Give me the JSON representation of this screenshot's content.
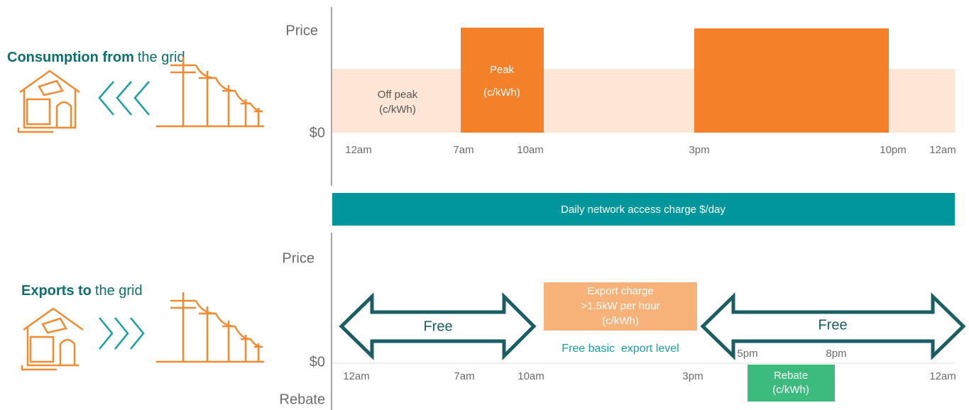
{
  "consumption": {
    "heading_bold": "Consumption from",
    "heading_rest": "the grid",
    "y_labels": [
      "Price",
      "$0"
    ],
    "time_labels": [
      "12am",
      "7am",
      "10am",
      "3pm",
      "10pm",
      "12am"
    ],
    "off_peak": [
      "Off peak",
      "(c/kWh)"
    ],
    "peak": [
      "Peak",
      "(c/kWh)"
    ]
  },
  "band": {
    "label": "Daily network access charge $/day"
  },
  "exports": {
    "heading_bold": "Exports to",
    "heading_rest": "the grid",
    "y_labels": [
      "Price",
      "$0",
      "Rebate"
    ],
    "time_labels": [
      "12am",
      "7am",
      "10am",
      "3pm",
      "12am"
    ],
    "free_left": "Free",
    "free_right": "Free",
    "export_charge": [
      "Export charge",
      ">1.5kW per hour",
      "(c/kWh)"
    ],
    "free_basic": "Free basic  export level",
    "rebate_times": [
      "5pm",
      "8pm"
    ],
    "rebate": [
      "Rebate",
      "(c/kWh)"
    ]
  }
}
